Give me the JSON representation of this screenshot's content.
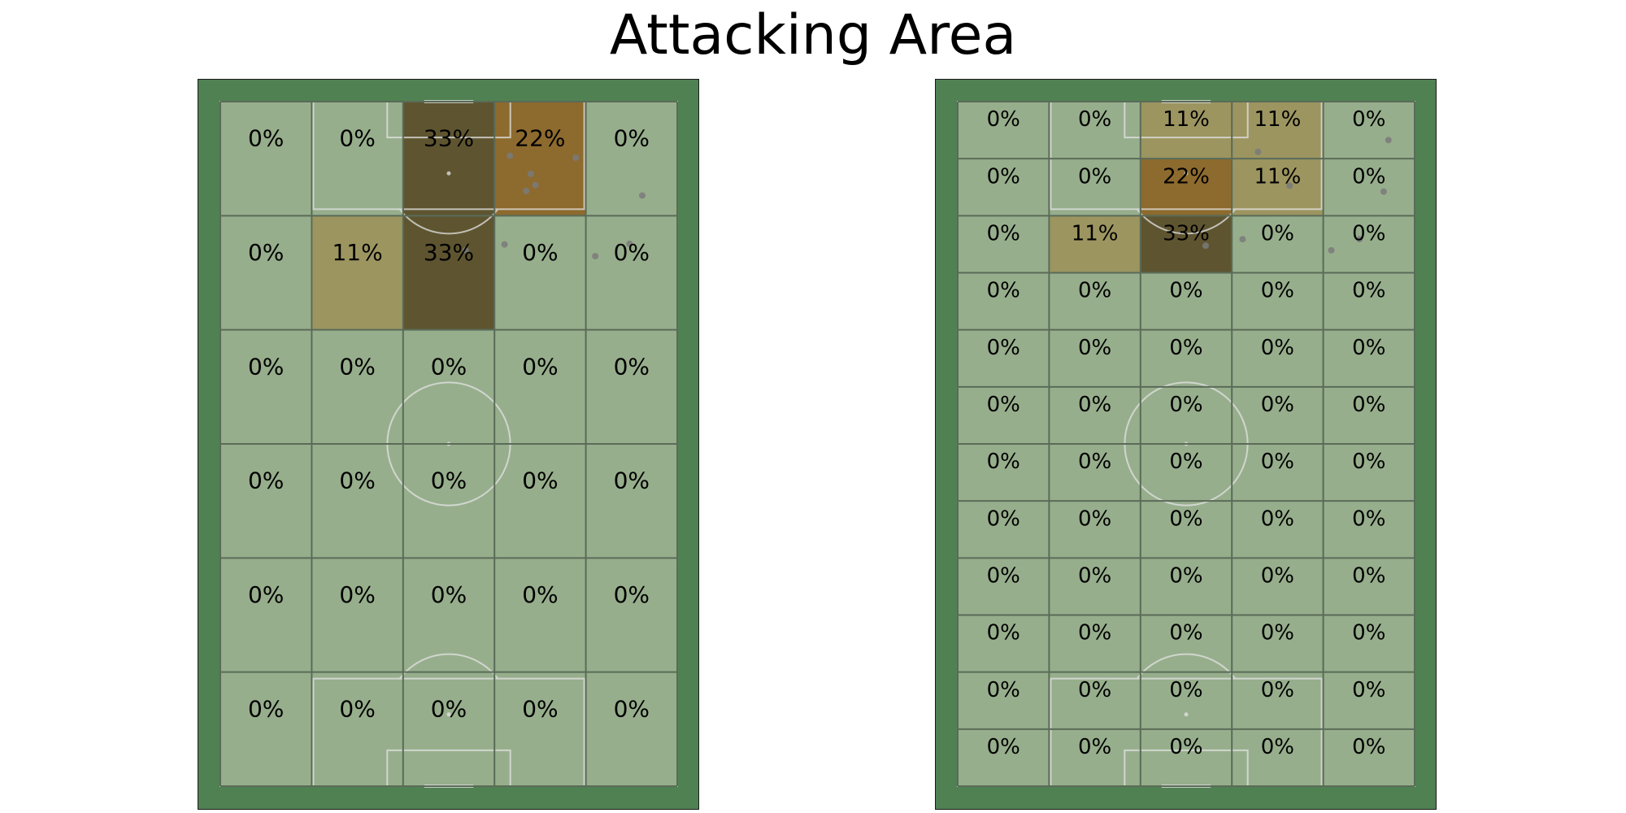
{
  "title": "Attacking Area",
  "colors": {
    "pitch_border": "#508152",
    "cell_base": "#97ae8c",
    "grid_line": "#5a6b58",
    "pitch_line": "#e4e4e4",
    "dot": "#7a7a7a",
    "heat_low": "#9c9560",
    "heat_mid": "#8d6a2e",
    "heat_high": "#5e5530"
  },
  "chart_data": [
    {
      "type": "heatmap",
      "name": "",
      "rows": 6,
      "cols": 5,
      "cells": [
        [
          "0%",
          "0%",
          "33%",
          "22%",
          "0%"
        ],
        [
          "0%",
          "11%",
          "33%",
          "0%",
          "0%"
        ],
        [
          "0%",
          "0%",
          "0%",
          "0%",
          "0%"
        ],
        [
          "0%",
          "0%",
          "0%",
          "0%",
          "0%"
        ],
        [
          "0%",
          "0%",
          "0%",
          "0%",
          "0%"
        ],
        [
          "0%",
          "0%",
          "0%",
          "0%",
          "0%"
        ]
      ],
      "values": [
        [
          0,
          0,
          33,
          22,
          0
        ],
        [
          0,
          11,
          33,
          0,
          0
        ],
        [
          0,
          0,
          0,
          0,
          0
        ],
        [
          0,
          0,
          0,
          0,
          0
        ],
        [
          0,
          0,
          0,
          0,
          0
        ],
        [
          0,
          0,
          0,
          0,
          0
        ]
      ],
      "points": [
        {
          "x": 43.1,
          "y": 8.3
        },
        {
          "x": 52.9,
          "y": 8.6
        },
        {
          "x": 46.2,
          "y": 11.1
        },
        {
          "x": 46.9,
          "y": 12.8
        },
        {
          "x": 45.5,
          "y": 13.7
        },
        {
          "x": 62.8,
          "y": 14.4
        },
        {
          "x": 36.5,
          "y": 22.8
        },
        {
          "x": 42.3,
          "y": 21.9
        },
        {
          "x": 55.8,
          "y": 23.7
        },
        {
          "x": 60.9,
          "y": 21.8
        }
      ]
    },
    {
      "type": "heatmap",
      "name": "",
      "rows": 12,
      "cols": 5,
      "cells": [
        [
          "0%",
          "0%",
          "11%",
          "11%",
          "0%"
        ],
        [
          "0%",
          "0%",
          "22%",
          "11%",
          "0%"
        ],
        [
          "0%",
          "11%",
          "33%",
          "0%",
          "0%"
        ],
        [
          "0%",
          "0%",
          "0%",
          "0%",
          "0%"
        ],
        [
          "0%",
          "0%",
          "0%",
          "0%",
          "0%"
        ],
        [
          "0%",
          "0%",
          "0%",
          "0%",
          "0%"
        ],
        [
          "0%",
          "0%",
          "0%",
          "0%",
          "0%"
        ],
        [
          "0%",
          "0%",
          "0%",
          "0%",
          "0%"
        ],
        [
          "0%",
          "0%",
          "0%",
          "0%",
          "0%"
        ],
        [
          "0%",
          "0%",
          "0%",
          "0%",
          "0%"
        ],
        [
          "0%",
          "0%",
          "0%",
          "0%",
          "0%"
        ],
        [
          "0%",
          "0%",
          "0%",
          "0%",
          "0%"
        ]
      ],
      "values": [
        [
          0,
          0,
          11,
          11,
          0
        ],
        [
          0,
          0,
          22,
          11,
          0
        ],
        [
          0,
          11,
          33,
          0,
          0
        ],
        [
          0,
          0,
          0,
          0,
          0
        ],
        [
          0,
          0,
          0,
          0,
          0
        ],
        [
          0,
          0,
          0,
          0,
          0
        ],
        [
          0,
          0,
          0,
          0,
          0
        ],
        [
          0,
          0,
          0,
          0,
          0
        ],
        [
          0,
          0,
          0,
          0,
          0
        ],
        [
          0,
          0,
          0,
          0,
          0
        ],
        [
          0,
          0,
          0,
          0,
          0
        ],
        [
          0,
          0,
          0,
          0,
          0
        ]
      ],
      "points": [
        {
          "x": 44.7,
          "y": 7.7
        },
        {
          "x": 64.1,
          "y": 5.9
        },
        {
          "x": 49.4,
          "y": 12.9
        },
        {
          "x": 63.4,
          "y": 13.8
        },
        {
          "x": 36.9,
          "y": 22.1
        },
        {
          "x": 42.4,
          "y": 21.1
        },
        {
          "x": 55.6,
          "y": 22.8
        },
        {
          "x": 59.8,
          "y": 21.1
        }
      ]
    }
  ]
}
